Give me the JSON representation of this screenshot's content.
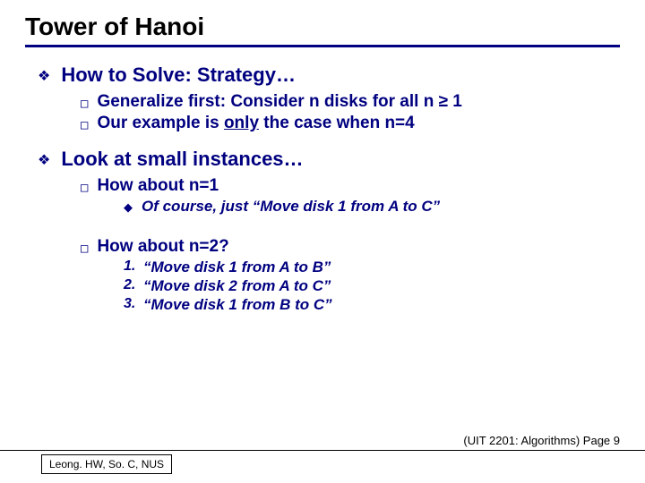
{
  "colors": {
    "text": "#000080",
    "title": "#000000",
    "rule": "#000080",
    "background": "#ffffff"
  },
  "title": "Tower of Hanoi",
  "section1": {
    "heading": "How to Solve: Strategy…",
    "items": [
      "Generalize first: Consider n disks for all n ≥ 1",
      {
        "pre": "Our example is ",
        "u": "only",
        "post": " the case when n=4"
      }
    ]
  },
  "section2": {
    "heading": "Look at small instances…",
    "sub1": {
      "label": "How about n=1",
      "detail": "Of course, just “Move disk 1 from A to C”"
    },
    "sub2": {
      "label": "How about n=2?",
      "steps": [
        "“Move disk 1 from A to B”",
        "“Move disk 2 from A to C”",
        "“Move disk 1 from B to C”"
      ]
    }
  },
  "footer": {
    "right": "(UIT 2201: Algorithms) Page 9",
    "leftBox": "Leong. HW, So. C, NUS"
  },
  "bullets": {
    "lvl1": "❖",
    "lvl2": "□",
    "lvl3": "◆"
  },
  "nums": [
    "1.",
    "2.",
    "3."
  ]
}
